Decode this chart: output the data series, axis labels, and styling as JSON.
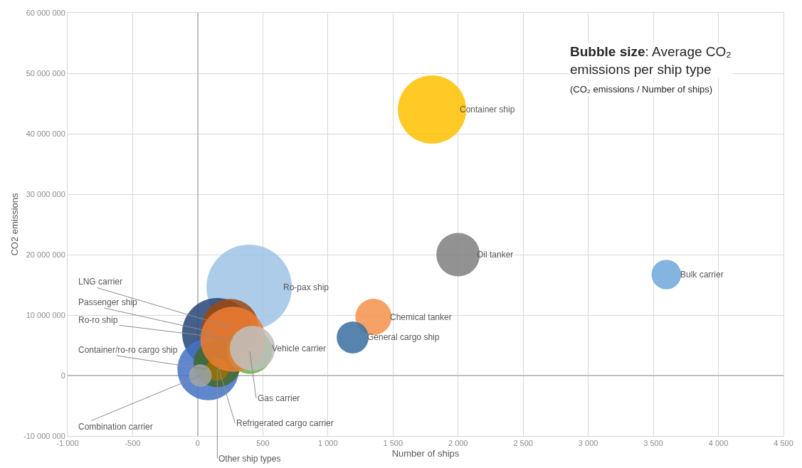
{
  "chart_data": {
    "type": "bubble",
    "xlabel": "Number of ships",
    "ylabel": "CO2 emissions",
    "xlim": [
      -1000,
      4500
    ],
    "xticks": [
      {
        "value": -1000,
        "label": "-1 000"
      },
      {
        "value": -500,
        "label": "-500"
      },
      {
        "value": 0,
        "label": "0"
      },
      {
        "value": 500,
        "label": "500"
      },
      {
        "value": 1000,
        "label": "1 000"
      },
      {
        "value": 1500,
        "label": "1 500"
      },
      {
        "value": 2000,
        "label": "2 000"
      },
      {
        "value": 2500,
        "label": "2 500"
      },
      {
        "value": 3000,
        "label": "3 000"
      },
      {
        "value": 3500,
        "label": "3 500"
      },
      {
        "value": 4000,
        "label": "4 000"
      },
      {
        "value": 4500,
        "label": "4 500"
      }
    ],
    "ylim": [
      -10000000,
      60000000
    ],
    "yticks": [
      {
        "value": -10000000,
        "label": "-10 000 000"
      },
      {
        "value": 0,
        "label": "0"
      },
      {
        "value": 10000000,
        "label": "10 000 000"
      },
      {
        "value": 20000000,
        "label": "20 000 000"
      },
      {
        "value": 30000000,
        "label": "30 000 000"
      },
      {
        "value": 40000000,
        "label": "40 000 000"
      },
      {
        "value": 50000000,
        "label": "50 000 000"
      },
      {
        "value": 60000000,
        "label": "60 000 000"
      }
    ],
    "grid": true,
    "legend": false,
    "annotations": [
      "Bubble size: Average CO₂ emissions per ship type",
      "(CO₂ emissions / Number of ships)"
    ],
    "series": [
      {
        "name": "Ro-pax ship",
        "color": "#9dc3e6",
        "x": [
          395
        ],
        "values": [
          14600000
        ],
        "sizes": [
          1
        ]
      },
      {
        "name": "Container ship",
        "color": "#ffc000",
        "x": [
          1800
        ],
        "values": [
          44000000
        ],
        "sizes": [
          0.64
        ]
      },
      {
        "name": "Passenger ship",
        "color": "#264478",
        "x": [
          150
        ],
        "values": [
          7000000
        ],
        "sizes": [
          0.68
        ]
      },
      {
        "name": "LNG carrier",
        "color": "#9e480e",
        "x": [
          250
        ],
        "values": [
          8000000
        ],
        "sizes": [
          0.44
        ]
      },
      {
        "name": "Container/ro-ro cargo ship",
        "color": "#4472c4",
        "x": [
          80
        ],
        "values": [
          1000000
        ],
        "sizes": [
          0.52
        ]
      },
      {
        "name": "Refrigerated cargo carrier",
        "color": "#43682b",
        "x": [
          150
        ],
        "values": [
          2000000
        ],
        "sizes": [
          0.31
        ]
      },
      {
        "name": "Other ship types",
        "color": "#997300",
        "x": [
          150
        ],
        "values": [
          1000000
        ],
        "sizes": [
          0.07
        ]
      },
      {
        "name": "Gas carrier",
        "color": "#70ad47",
        "x": [
          400
        ],
        "values": [
          4000000
        ],
        "sizes": [
          0.28
        ]
      },
      {
        "name": "Ro-ro ship",
        "color": "#ed7d31",
        "x": [
          270
        ],
        "values": [
          6000000
        ],
        "sizes": [
          0.58
        ]
      },
      {
        "name": "Vehicle carrier",
        "color": "#bfbfbf",
        "x": [
          420
        ],
        "values": [
          4500000
        ],
        "sizes": [
          0.28
        ]
      },
      {
        "name": "Combination carrier",
        "color": "#a5a5a5",
        "x": [
          20
        ],
        "values": [
          0
        ],
        "sizes": [
          0.07
        ]
      },
      {
        "name": "Oil tanker",
        "color": "#7f7f7f",
        "x": [
          2000
        ],
        "values": [
          20000000
        ],
        "sizes": [
          0.26
        ]
      },
      {
        "name": "Chemical tanker",
        "color": "#f4914a",
        "x": [
          1350
        ],
        "values": [
          9700000
        ],
        "sizes": [
          0.18
        ]
      },
      {
        "name": "General cargo ship",
        "color": "#3a6fa0",
        "x": [
          1190
        ],
        "values": [
          6300000
        ],
        "sizes": [
          0.14
        ]
      },
      {
        "name": "Bulk carrier",
        "color": "#6fa8dc",
        "x": [
          3600
        ],
        "values": [
          16700000
        ],
        "sizes": [
          0.12
        ]
      }
    ]
  }
}
